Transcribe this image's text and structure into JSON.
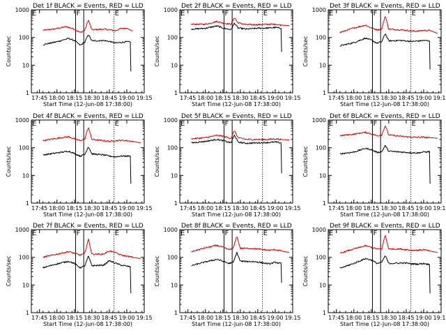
{
  "chart_data": {
    "type": "line",
    "layout": "3x3 grid",
    "y_scale": "log",
    "ylim": [
      1,
      1000
    ],
    "y_ticks": [
      1,
      10,
      100,
      1000
    ],
    "y_tick_labels": [
      "1",
      "10",
      "100",
      "1000"
    ],
    "ylabel": "Counts/sec",
    "xlabel": "Start Time (12-Jun-08 17:38:00)",
    "xlim": [
      "17:38",
      "19:15"
    ],
    "x_ticks": [
      "17:45",
      "18:00",
      "18:15",
      "18:30",
      "18:45",
      "19:00",
      "19:15"
    ],
    "grid": false,
    "legend_placement": "in title",
    "time_markers": [
      {
        "label": "E",
        "time": "17:38",
        "style": "dotted"
      },
      {
        "label": "F",
        "time": "18:16",
        "style": "solid"
      },
      {
        "label": "",
        "time": "18:23",
        "style": "solid"
      },
      {
        "label": "E",
        "time": "18:49",
        "style": "dotted"
      }
    ],
    "panels": [
      {
        "title": "Det 1f BLACK = Events, RED = LLD",
        "series": [
          {
            "color": "#d40000",
            "x": [
              "17:48",
              "18:00",
              "18:08",
              "18:15",
              "18:20",
              "18:24",
              "18:27",
              "18:30",
              "18:40",
              "18:45",
              "18:50",
              "18:55",
              "19:00",
              "19:05"
            ],
            "y": [
              180,
              210,
              245,
              200,
              150,
              185,
              430,
              190,
              200,
              190,
              175,
              210,
              215,
              170
            ]
          },
          {
            "color": "#000000",
            "x": [
              "17:48",
              "18:00",
              "18:10",
              "18:15",
              "18:20",
              "18:24",
              "18:27",
              "18:30",
              "18:40",
              "18:45",
              "18:50",
              "18:55",
              "19:00",
              "19:03",
              "19:03.5"
            ],
            "y": [
              55,
              70,
              92,
              78,
              52,
              68,
              130,
              75,
              78,
              72,
              63,
              66,
              70,
              68,
              6
            ]
          }
        ]
      },
      {
        "title": "Det 2f BLACK = Events, RED = LLD",
        "series": [
          {
            "color": "#d40000",
            "x": [
              "17:48",
              "18:00",
              "18:10",
              "18:15",
              "18:22",
              "18:25",
              "18:28",
              "18:35",
              "18:45",
              "18:55",
              "19:00",
              "19:05",
              "19:12"
            ],
            "y": [
              300,
              300,
              380,
              330,
              300,
              520,
              340,
              290,
              290,
              300,
              300,
              280,
              270
            ]
          },
          {
            "color": "#000000",
            "x": [
              "17:48",
              "18:00",
              "18:10",
              "18:15",
              "18:22",
              "18:25",
              "18:28",
              "18:35",
              "18:45",
              "18:55",
              "19:00",
              "19:05",
              "19:05.5"
            ],
            "y": [
              200,
              215,
              260,
              220,
              190,
              330,
              220,
              200,
              215,
              220,
              230,
              215,
              30
            ]
          }
        ]
      },
      {
        "title": "Det 3f BLACK = Events, RED = LLD",
        "series": [
          {
            "color": "#d40000",
            "x": [
              "17:48",
              "18:00",
              "18:10",
              "18:15",
              "18:20",
              "18:24",
              "18:27",
              "18:30",
              "18:40",
              "18:45",
              "18:50",
              "18:55",
              "19:00",
              "19:05",
              "19:12"
            ],
            "y": [
              150,
              220,
              280,
              220,
              190,
              200,
              620,
              200,
              190,
              180,
              170,
              170,
              180,
              180,
              140
            ]
          },
          {
            "color": "#000000",
            "x": [
              "17:48",
              "18:00",
              "18:10",
              "18:15",
              "18:20",
              "18:24",
              "18:27",
              "18:30",
              "18:40",
              "18:45",
              "18:50",
              "18:55",
              "19:00",
              "19:05",
              "19:05.5"
            ],
            "y": [
              50,
              65,
              95,
              80,
              62,
              70,
              140,
              75,
              78,
              75,
              72,
              74,
              78,
              75,
              7
            ]
          }
        ]
      },
      {
        "title": "Det 4f BLACK = Events, RED = LLD",
        "series": [
          {
            "color": "#d40000",
            "x": [
              "17:48",
              "18:00",
              "18:10",
              "18:15",
              "18:20",
              "18:24",
              "18:27",
              "18:30",
              "18:40",
              "18:45",
              "18:50",
              "18:55",
              "19:00",
              "19:05",
              "19:12"
            ],
            "y": [
              180,
              220,
              250,
              210,
              180,
              210,
              560,
              200,
              180,
              170,
              180,
              185,
              180,
              170,
              150
            ]
          },
          {
            "color": "#000000",
            "x": [
              "17:48",
              "18:00",
              "18:10",
              "18:15",
              "18:20",
              "18:24",
              "18:27",
              "18:30",
              "18:40",
              "18:45",
              "18:50",
              "18:55",
              "19:00",
              "19:03",
              "19:03.5"
            ],
            "y": [
              55,
              65,
              75,
              62,
              50,
              58,
              110,
              60,
              55,
              50,
              47,
              50,
              50,
              50,
              5
            ]
          }
        ]
      },
      {
        "title": "Det 5f BLACK = Events, RED = LLD",
        "series": [
          {
            "color": "#d40000",
            "x": [
              "17:48",
              "18:00",
              "18:10",
              "18:15",
              "18:22",
              "18:25",
              "18:28",
              "18:35",
              "18:45",
              "18:55",
              "19:00",
              "19:05",
              "19:12"
            ],
            "y": [
              210,
              230,
              280,
              260,
              220,
              420,
              230,
              200,
              200,
              200,
              210,
              200,
              190
            ]
          },
          {
            "color": "#000000",
            "x": [
              "17:48",
              "18:00",
              "18:10",
              "18:15",
              "18:22",
              "18:25",
              "18:28",
              "18:35",
              "18:45",
              "18:55",
              "19:00",
              "19:05",
              "19:05.5"
            ],
            "y": [
              150,
              170,
              200,
              180,
              150,
              290,
              160,
              145,
              150,
              155,
              160,
              150,
              12
            ]
          }
        ]
      },
      {
        "title": "Det 6f BLACK = Events, RED = LLD",
        "series": [
          {
            "color": "#d40000",
            "x": [
              "17:48",
              "18:00",
              "18:10",
              "18:15",
              "18:20",
              "18:24",
              "18:27",
              "18:30",
              "18:40",
              "18:45",
              "18:50",
              "18:55",
              "19:00",
              "19:05",
              "19:12"
            ],
            "y": [
              270,
              310,
              360,
              320,
              270,
              290,
              640,
              290,
              260,
              250,
              240,
              240,
              240,
              230,
              220
            ]
          },
          {
            "color": "#000000",
            "x": [
              "17:48",
              "18:00",
              "18:10",
              "18:15",
              "18:20",
              "18:24",
              "18:27",
              "18:30",
              "18:40",
              "18:45",
              "18:50",
              "18:55",
              "19:00",
              "19:05",
              "19:05.5"
            ],
            "y": [
              60,
              70,
              95,
              85,
              68,
              72,
              120,
              75,
              70,
              68,
              66,
              65,
              70,
              72,
              5
            ]
          }
        ]
      },
      {
        "title": "Det 7f BLACK = Events, RED = LLD",
        "series": [
          {
            "color": "#d40000",
            "x": [
              "17:48",
              "18:00",
              "18:10",
              "18:15",
              "18:20",
              "18:24",
              "18:27",
              "18:30",
              "18:40",
              "18:45",
              "18:50",
              "18:55",
              "19:00",
              "19:05",
              "19:12"
            ],
            "y": [
              100,
              130,
              160,
              140,
              120,
              140,
              460,
              130,
              130,
              170,
              150,
              120,
              110,
              100,
              90
            ]
          },
          {
            "color": "#000000",
            "x": [
              "17:48",
              "18:00",
              "18:10",
              "18:15",
              "18:20",
              "18:24",
              "18:27",
              "18:30",
              "18:40",
              "18:45",
              "18:50",
              "18:55",
              "19:00",
              "19:03",
              "19:03.5"
            ],
            "y": [
              42,
              58,
              72,
              60,
              42,
              50,
              110,
              50,
              52,
              75,
              62,
              52,
              48,
              45,
              5
            ]
          }
        ]
      },
      {
        "title": "Det 8f BLACK = Events, RED = LLD",
        "series": [
          {
            "color": "#d40000",
            "x": [
              "17:48",
              "18:00",
              "18:10",
              "18:15",
              "18:20",
              "18:24",
              "18:27",
              "18:30",
              "18:40",
              "18:45",
              "18:50",
              "18:55",
              "19:00",
              "19:05",
              "19:12"
            ],
            "y": [
              160,
              220,
              270,
              230,
              190,
              210,
              600,
              210,
              210,
              200,
              190,
              180,
              190,
              170,
              150
            ]
          },
          {
            "color": "#000000",
            "x": [
              "17:48",
              "18:00",
              "18:10",
              "18:15",
              "18:20",
              "18:24",
              "18:27",
              "18:30",
              "18:40",
              "18:45",
              "18:50",
              "18:55",
              "19:00",
              "19:05",
              "19:05.5"
            ],
            "y": [
              50,
              68,
              85,
              72,
              60,
              66,
              150,
              72,
              70,
              68,
              62,
              58,
              66,
              60,
              12
            ]
          }
        ]
      },
      {
        "title": "Det 9f BLACK = Events, RED = LLD",
        "series": [
          {
            "color": "#d40000",
            "x": [
              "17:48",
              "18:00",
              "18:10",
              "18:15",
              "18:20",
              "18:24",
              "18:27",
              "18:30",
              "18:40",
              "18:45",
              "18:50",
              "18:55",
              "19:00",
              "19:05",
              "19:12"
            ],
            "y": [
              140,
              200,
              260,
              230,
              200,
              200,
              640,
              200,
              200,
              190,
              180,
              180,
              190,
              170,
              150
            ]
          },
          {
            "color": "#000000",
            "x": [
              "17:48",
              "18:00",
              "18:10",
              "18:15",
              "18:20",
              "18:24",
              "18:27",
              "18:30",
              "18:40",
              "18:45",
              "18:50",
              "18:55",
              "19:00",
              "19:05",
              "19:05.5"
            ],
            "y": [
              40,
              60,
              90,
              80,
              60,
              66,
              115,
              60,
              62,
              62,
              58,
              57,
              60,
              55,
              5
            ]
          }
        ]
      }
    ]
  }
}
